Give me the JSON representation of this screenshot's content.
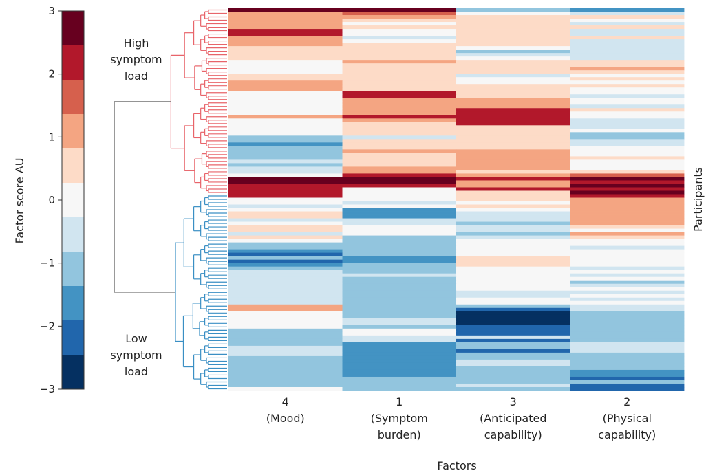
{
  "chart_data": {
    "type": "heatmap",
    "title": "",
    "xlabel": "Factors",
    "ylabel": "Participants",
    "colorbar": {
      "label": "Factor score AU",
      "range": [
        -3,
        3
      ],
      "ticks": [
        "3",
        "2",
        "1",
        "0",
        "−1",
        "−2",
        "−3"
      ],
      "tick_values": [
        3,
        2,
        1,
        0,
        -1,
        -2,
        -3
      ],
      "colors": [
        "#67001f",
        "#b2182b",
        "#d6604d",
        "#f4a582",
        "#fddbc7",
        "#f7f7f7",
        "#d1e5f0",
        "#92c5de",
        "#4393c3",
        "#2166ac",
        "#053061"
      ]
    },
    "factors": [
      {
        "code": "4",
        "name": "(Mood)",
        "name_lines": [
          "(Mood)"
        ]
      },
      {
        "code": "1",
        "name": "(Symptom burden)",
        "name_lines": [
          "(Symptom",
          "burden)"
        ]
      },
      {
        "code": "3",
        "name": "(Anticipated capability)",
        "name_lines": [
          "(Anticipated",
          "capability)"
        ]
      },
      {
        "code": "2",
        "name": "(Physical capability)",
        "name_lines": [
          "(Physical",
          "capability)"
        ]
      }
    ],
    "clusters": [
      {
        "name": "High symptom load",
        "label_lines": [
          "High",
          "symptom",
          "load"
        ],
        "color": "#e8646a",
        "n_rows": 54
      },
      {
        "name": "Low symptom load",
        "label_lines": [
          "Low",
          "symptom",
          "load"
        ],
        "color": "#3a8fc4",
        "n_rows": 57
      }
    ],
    "dendrogram_root_color": "#555555",
    "scores": [
      [
        2.6,
        2.8,
        -1.2,
        -1.9
      ],
      [
        1.3,
        1.4,
        0.0,
        -0.6
      ],
      [
        1.3,
        1.0,
        0.5,
        0.5
      ],
      [
        1.3,
        0.5,
        0.5,
        0.0
      ],
      [
        1.3,
        0.0,
        0.5,
        -0.5
      ],
      [
        1.3,
        0.5,
        0.5,
        0.5
      ],
      [
        2.1,
        0.0,
        0.5,
        -0.5
      ],
      [
        2.1,
        0.0,
        0.5,
        -0.5
      ],
      [
        1.3,
        -0.5,
        0.5,
        0.5
      ],
      [
        1.3,
        0.0,
        0.5,
        -0.5
      ],
      [
        1.3,
        0.5,
        0.5,
        -0.5
      ],
      [
        0.5,
        0.5,
        0.0,
        -0.5
      ],
      [
        0.5,
        0.5,
        -1.0,
        -0.5
      ],
      [
        0.5,
        0.5,
        -0.5,
        -0.5
      ],
      [
        0.5,
        0.5,
        0.0,
        -0.5
      ],
      [
        0.0,
        1.3,
        0.5,
        0.5
      ],
      [
        0.0,
        0.5,
        0.5,
        0.5
      ],
      [
        0.0,
        0.5,
        0.5,
        1.3
      ],
      [
        0.0,
        0.5,
        0.5,
        0.5
      ],
      [
        0.5,
        0.5,
        -0.5,
        0.0
      ],
      [
        0.5,
        0.5,
        0.0,
        0.5
      ],
      [
        1.3,
        0.5,
        0.0,
        0.0
      ],
      [
        1.3,
        0.5,
        0.5,
        0.5
      ],
      [
        1.3,
        0.5,
        0.5,
        0.0
      ],
      [
        0.0,
        2.0,
        0.5,
        0.0
      ],
      [
        0.0,
        2.0,
        0.5,
        -0.5
      ],
      [
        0.0,
        1.3,
        1.3,
        0.0
      ],
      [
        0.0,
        1.3,
        1.3,
        0.0
      ],
      [
        0.0,
        1.3,
        1.3,
        -0.5
      ],
      [
        0.0,
        1.3,
        2.0,
        0.5
      ],
      [
        0.0,
        1.3,
        2.0,
        0.0
      ],
      [
        1.3,
        2.0,
        2.0,
        0.0
      ],
      [
        0.0,
        1.3,
        2.0,
        -0.5
      ],
      [
        0.0,
        0.5,
        2.0,
        -0.5
      ],
      [
        0.0,
        0.5,
        0.5,
        -0.5
      ],
      [
        0.0,
        0.5,
        0.5,
        0.0
      ],
      [
        0.0,
        0.5,
        0.5,
        -1.2
      ],
      [
        -1.0,
        -0.5,
        0.5,
        -1.2
      ],
      [
        -1.0,
        0.5,
        0.5,
        -0.5
      ],
      [
        -1.5,
        0.5,
        0.5,
        -0.5
      ],
      [
        -1.0,
        0.5,
        0.5,
        0.0
      ],
      [
        -1.0,
        1.3,
        1.3,
        0.0
      ],
      [
        -1.0,
        0.5,
        1.3,
        0.0
      ],
      [
        -1.0,
        0.5,
        1.3,
        0.5
      ],
      [
        -0.5,
        0.5,
        1.3,
        0.0
      ],
      [
        -1.0,
        0.5,
        1.3,
        0.0
      ],
      [
        -0.5,
        1.3,
        1.3,
        0.0
      ],
      [
        -0.5,
        1.3,
        0.5,
        0.5
      ],
      [
        0.0,
        2.2,
        1.3,
        1.4
      ],
      [
        2.7,
        2.7,
        2.1,
        2.7
      ],
      [
        2.7,
        2.7,
        1.3,
        2.2
      ],
      [
        2.2,
        2.2,
        1.3,
        2.7
      ],
      [
        2.2,
        0.0,
        2.0,
        2.1
      ],
      [
        2.1,
        0.0,
        0.5,
        2.7
      ]
    ],
    "scores_low": [
      [
        2.1,
        0.0,
        0.5,
        2.1
      ],
      [
        0.0,
        0.0,
        0.5,
        1.3
      ],
      [
        0.0,
        -0.5,
        0.0,
        1.3
      ],
      [
        -0.5,
        0.0,
        0.5,
        1.3
      ],
      [
        0.0,
        -1.5,
        0.0,
        1.3
      ],
      [
        0.5,
        -1.5,
        -0.5,
        1.3
      ],
      [
        0.5,
        -1.5,
        -0.5,
        1.3
      ],
      [
        -0.5,
        -0.5,
        -0.5,
        1.3
      ],
      [
        0.0,
        -0.5,
        -1.0,
        1.3
      ],
      [
        0.5,
        0.0,
        -0.5,
        0.5
      ],
      [
        0.5,
        0.0,
        -0.5,
        0.0
      ],
      [
        -0.5,
        0.0,
        -1.0,
        1.3
      ],
      [
        0.5,
        -1.0,
        -0.5,
        0.5
      ],
      [
        0.0,
        -1.0,
        0.0,
        0.0
      ],
      [
        -1.0,
        -1.0,
        0.0,
        0.0
      ],
      [
        -1.0,
        -1.0,
        0.0,
        -0.5
      ],
      [
        -1.5,
        -1.0,
        0.0,
        0.0
      ],
      [
        -2.0,
        -1.0,
        0.0,
        0.0
      ],
      [
        -1.0,
        -1.5,
        0.5,
        0.0
      ],
      [
        -2.0,
        -1.5,
        0.5,
        0.0
      ],
      [
        -1.5,
        -1.0,
        0.5,
        0.0
      ],
      [
        -1.0,
        -1.0,
        0.0,
        -0.5
      ],
      [
        -0.5,
        -1.0,
        0.0,
        0.0
      ],
      [
        -0.5,
        -0.5,
        0.0,
        -0.5
      ],
      [
        -0.5,
        -1.0,
        0.0,
        0.0
      ],
      [
        -0.5,
        -1.0,
        0.0,
        -1.0
      ],
      [
        -0.5,
        -1.0,
        0.0,
        -0.5
      ],
      [
        -0.5,
        -1.0,
        0.0,
        0.0
      ],
      [
        -0.5,
        -1.0,
        -0.5,
        -0.5
      ],
      [
        -0.5,
        -1.0,
        -0.5,
        0.0
      ],
      [
        -0.5,
        -1.0,
        0.0,
        -0.5
      ],
      [
        -0.5,
        -1.0,
        0.0,
        0.0
      ],
      [
        1.3,
        -1.0,
        -1.0,
        -0.5
      ],
      [
        1.3,
        -1.0,
        -2.4,
        -0.5
      ],
      [
        0.0,
        -1.0,
        -2.8,
        -1.0
      ],
      [
        0.0,
        -1.0,
        -2.8,
        -1.0
      ],
      [
        0.0,
        -0.5,
        -2.8,
        -1.0
      ],
      [
        0.0,
        -0.5,
        -2.8,
        -1.0
      ],
      [
        0.0,
        -1.0,
        -2.0,
        -1.0
      ],
      [
        -1.0,
        0.0,
        -2.0,
        -1.0
      ],
      [
        -1.0,
        0.0,
        -2.0,
        -1.0
      ],
      [
        -1.0,
        -0.5,
        -0.5,
        -1.0
      ],
      [
        -1.0,
        -0.5,
        -2.0,
        -1.0
      ],
      [
        -1.0,
        -1.5,
        -1.0,
        -0.5
      ],
      [
        -0.5,
        -1.5,
        -1.0,
        -0.5
      ],
      [
        -0.5,
        -1.5,
        -2.0,
        -0.5
      ],
      [
        -0.5,
        -1.5,
        -1.0,
        -1.0
      ],
      [
        -1.0,
        -1.5,
        -1.0,
        -1.0
      ],
      [
        -1.0,
        -1.5,
        -0.5,
        -1.0
      ],
      [
        -1.0,
        -1.5,
        -0.5,
        -1.0
      ],
      [
        -1.0,
        -1.5,
        -1.0,
        -1.0
      ],
      [
        -1.0,
        -1.5,
        -1.0,
        -1.5
      ],
      [
        -1.0,
        -1.5,
        -1.0,
        -1.5
      ],
      [
        -1.0,
        -1.0,
        -1.0,
        -2.0
      ],
      [
        -1.0,
        -1.0,
        -1.0,
        -1.0
      ],
      [
        -1.0,
        -1.0,
        -0.5,
        -2.0
      ],
      [
        0.0,
        -1.0,
        -1.0,
        -2.0
      ]
    ]
  }
}
